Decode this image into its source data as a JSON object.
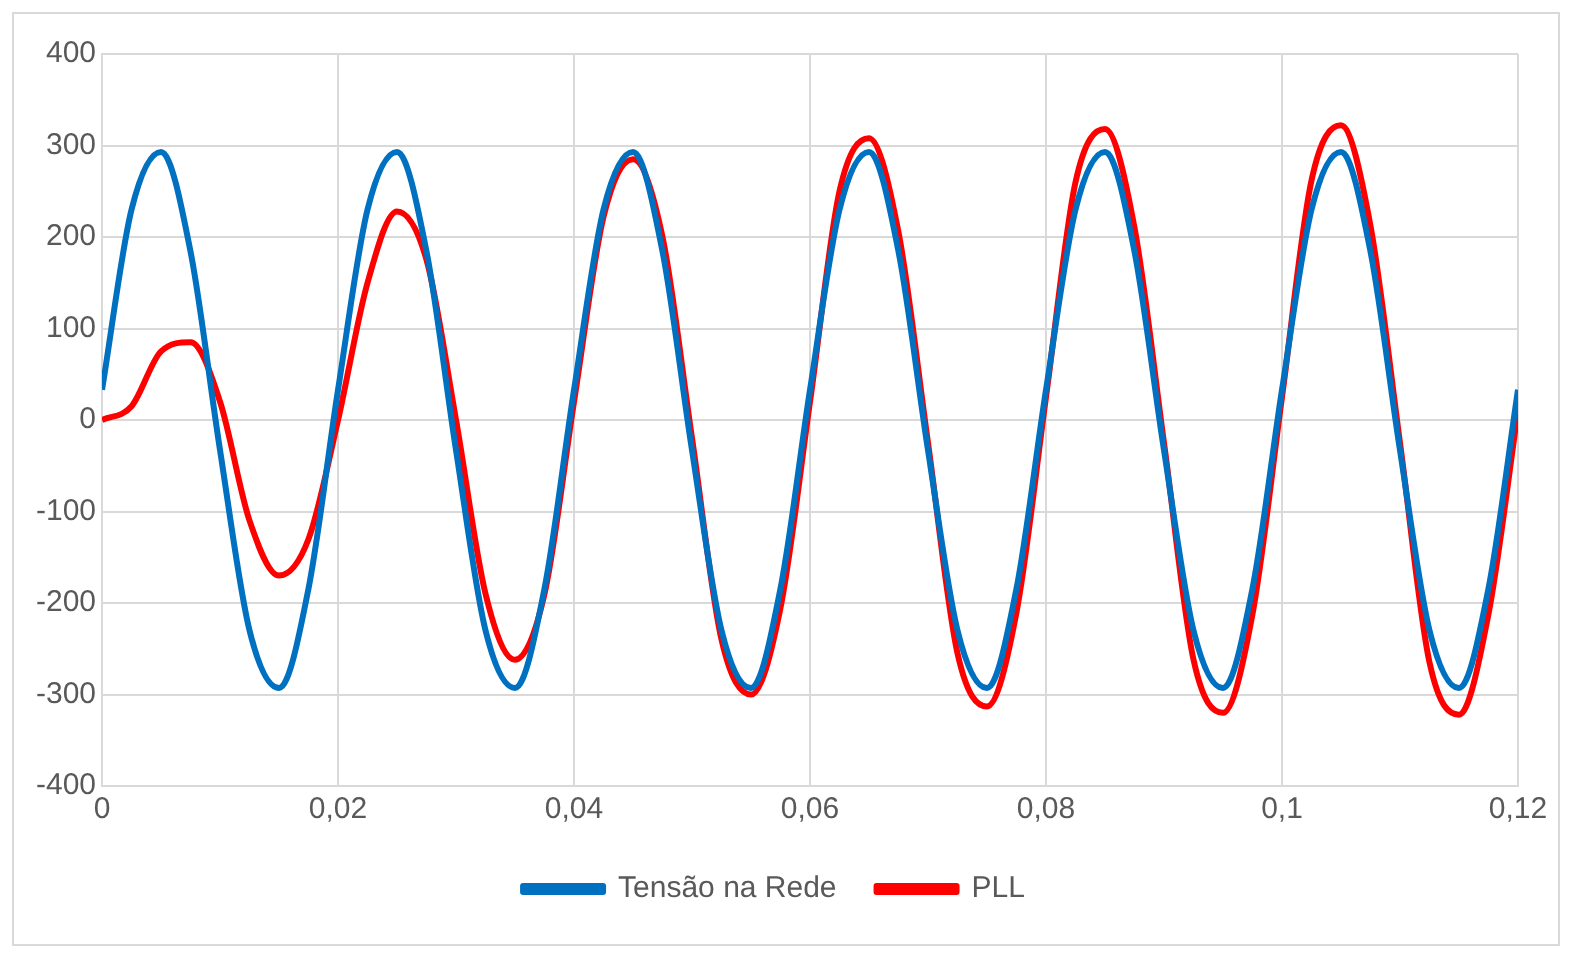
{
  "chart_data": {
    "type": "line",
    "x": [
      0,
      0.0025,
      0.005,
      0.0075,
      0.01,
      0.0125,
      0.015,
      0.0175,
      0.02,
      0.0225,
      0.025,
      0.0275,
      0.03,
      0.0325,
      0.035,
      0.0375,
      0.04,
      0.0425,
      0.045,
      0.0475,
      0.05,
      0.0525,
      0.055,
      0.0575,
      0.06,
      0.0625,
      0.065,
      0.0675,
      0.07,
      0.0725,
      0.075,
      0.0775,
      0.08,
      0.0825,
      0.085,
      0.0875,
      0.09,
      0.0925,
      0.095,
      0.0975,
      0.1,
      0.1025,
      0.105,
      0.1075,
      0.11,
      0.1125,
      0.115,
      0.1175,
      0.12
    ],
    "series": [
      {
        "name": "Tensão na Rede",
        "color": "#0070c0",
        "values": [
          33,
          230,
          293,
          184,
          -33,
          -230,
          -293,
          -184,
          33,
          230,
          293,
          184,
          -33,
          -230,
          -293,
          -184,
          33,
          230,
          293,
          184,
          -33,
          -230,
          -293,
          -184,
          33,
          230,
          293,
          184,
          -33,
          -230,
          -293,
          -184,
          33,
          230,
          293,
          184,
          -33,
          -230,
          -293,
          -184,
          33,
          230,
          293,
          184,
          -33,
          -230,
          -293,
          -184,
          33
        ]
      },
      {
        "name": "PLL",
        "color": "#ff0000",
        "values": [
          0,
          15,
          75,
          85,
          20,
          -110,
          -170,
          -130,
          0,
          150,
          228,
          175,
          0,
          -190,
          -262,
          -190,
          20,
          222,
          285,
          200,
          -20,
          -240,
          -300,
          -205,
          20,
          250,
          308,
          205,
          -25,
          -255,
          -313,
          -210,
          25,
          260,
          318,
          210,
          -25,
          -262,
          -320,
          -212,
          25,
          262,
          322,
          212,
          -25,
          -265,
          -322,
          -212,
          10
        ]
      }
    ],
    "xlim": [
      0,
      0.12
    ],
    "xticks": [
      0,
      {
        "value": 0.02,
        "label": "0,02"
      },
      {
        "value": 0.04,
        "label": "0,04"
      },
      {
        "value": 0.06,
        "label": "0,06"
      },
      {
        "value": 0.08,
        "label": "0,08"
      },
      {
        "value": 0.1,
        "label": "0,1"
      },
      {
        "value": 0.12,
        "label": "0,12"
      }
    ],
    "ylim": [
      -400,
      400
    ],
    "yticks": [
      -400,
      -300,
      -200,
      -100,
      0,
      100,
      200,
      300,
      400
    ],
    "grid": true,
    "legend": "bottom",
    "marker": "none",
    "line_style": "solid"
  }
}
